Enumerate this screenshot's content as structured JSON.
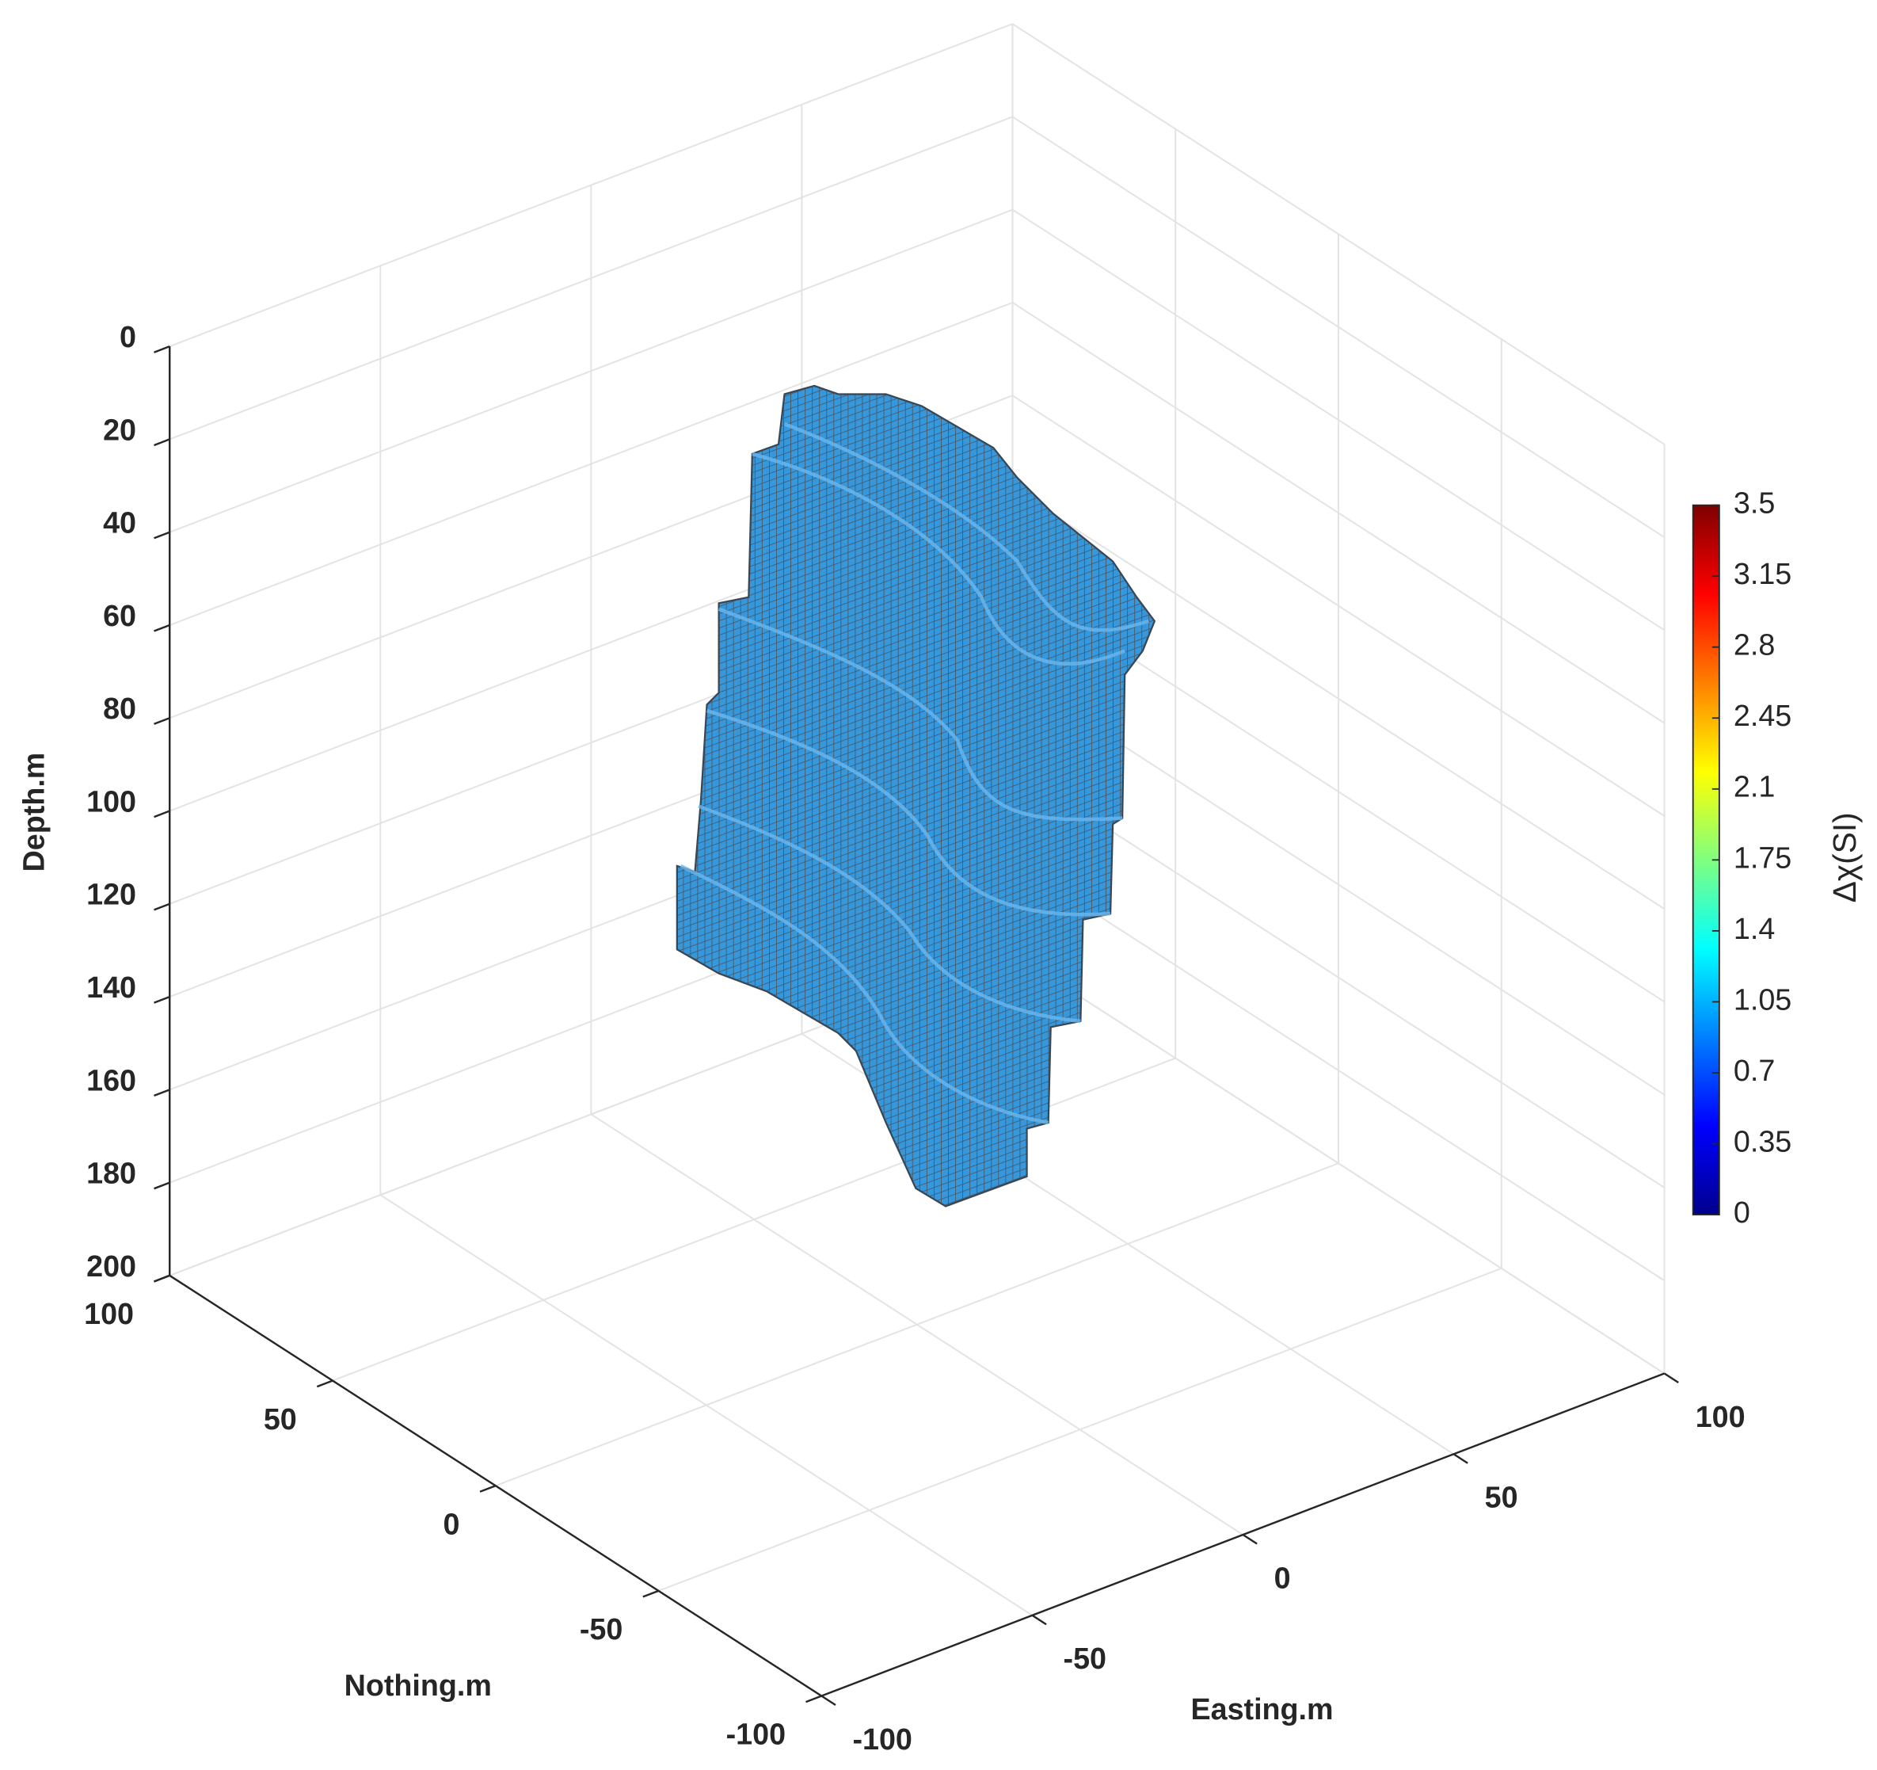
{
  "chart_data": {
    "type": "voxel",
    "xlabel": "Easting.m",
    "ylabel": "Nothing.m",
    "zlabel": "Depth.m",
    "xlim": [
      -100,
      100
    ],
    "xticks": [
      -100,
      -50,
      0,
      50,
      100
    ],
    "ylim": [
      -100,
      100
    ],
    "yticks": [
      -100,
      -50,
      0,
      50,
      100
    ],
    "zlim": [
      0,
      200
    ],
    "zticks": [
      0,
      20,
      40,
      60,
      80,
      100,
      120,
      140,
      160,
      180,
      200
    ],
    "z_reversed": true,
    "grid": true,
    "color": "#3597dc",
    "colorbar": {
      "label": "Δχ(SI)",
      "lim": [
        0,
        3.5
      ],
      "colormap": "jet",
      "ticks": [
        0,
        0.35,
        0.7,
        1.05,
        1.4,
        1.75,
        2.1,
        2.45,
        2.8,
        3.15,
        3.5
      ]
    }
  }
}
